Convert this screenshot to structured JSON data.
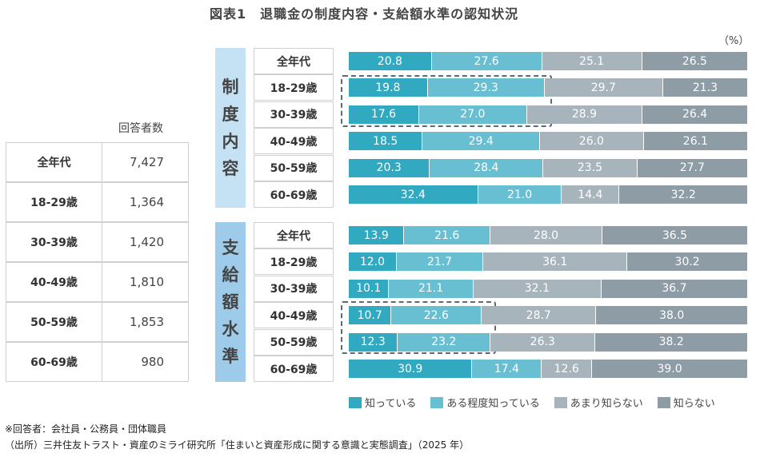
{
  "title": "図表1　退職金の制度内容・支給額水準の認知状況",
  "unit": "（%）",
  "colors": {
    "know": "#31a9c1",
    "somewhat": "#68bfd2",
    "little": "#a8b4bc",
    "no": "#8e9ca6",
    "sec1_bg": "#c4e2f4",
    "sec2_bg": "#9dcbe9"
  },
  "respondents": {
    "header": "回答者数",
    "rows": [
      {
        "label": "全年代",
        "count": "7,427"
      },
      {
        "label": "18-29歳",
        "count": "1,364"
      },
      {
        "label": "30-39歳",
        "count": "1,420"
      },
      {
        "label": "40-49歳",
        "count": "1,810"
      },
      {
        "label": "50-59歳",
        "count": "1,853"
      },
      {
        "label": "60-69歳",
        "count": "980"
      }
    ]
  },
  "chart_data": {
    "type": "bar",
    "stacked": true,
    "orientation": "horizontal",
    "unit": "%",
    "legend": [
      "知っている",
      "ある程度知っている",
      "あまり知らない",
      "知らない"
    ],
    "legend_position": "bottom-right",
    "categories": [
      "全年代",
      "18-29歳",
      "30-39歳",
      "40-49歳",
      "50-59歳",
      "60-69歳"
    ],
    "groups": [
      {
        "label": "制度内容",
        "values": [
          [
            20.8,
            27.6,
            25.1,
            26.5
          ],
          [
            19.8,
            29.3,
            29.7,
            21.3
          ],
          [
            17.6,
            27.0,
            28.9,
            26.4
          ],
          [
            18.5,
            29.4,
            26.0,
            26.1
          ],
          [
            20.3,
            28.4,
            23.5,
            27.7
          ],
          [
            32.4,
            21.0,
            14.4,
            32.2
          ]
        ],
        "highlighted": [
          "18-29歳",
          "30-39歳"
        ]
      },
      {
        "label": "支給額水準",
        "values": [
          [
            13.9,
            21.6,
            28.0,
            36.5
          ],
          [
            12.0,
            21.7,
            36.1,
            30.2
          ],
          [
            10.1,
            21.1,
            32.1,
            36.7
          ],
          [
            10.7,
            22.6,
            28.7,
            38.0
          ],
          [
            12.3,
            23.2,
            26.3,
            38.2
          ],
          [
            30.9,
            17.4,
            12.6,
            39.0
          ]
        ],
        "highlighted": [
          "40-49歳",
          "50-59歳"
        ]
      }
    ]
  },
  "notes": {
    "respondents": "※回答者：会社員・公務員・団体職員",
    "source": "（出所）三井住友トラスト・資産のミライ研究所「住まいと資産形成に関する意識と実態調査」（2025 年）"
  }
}
